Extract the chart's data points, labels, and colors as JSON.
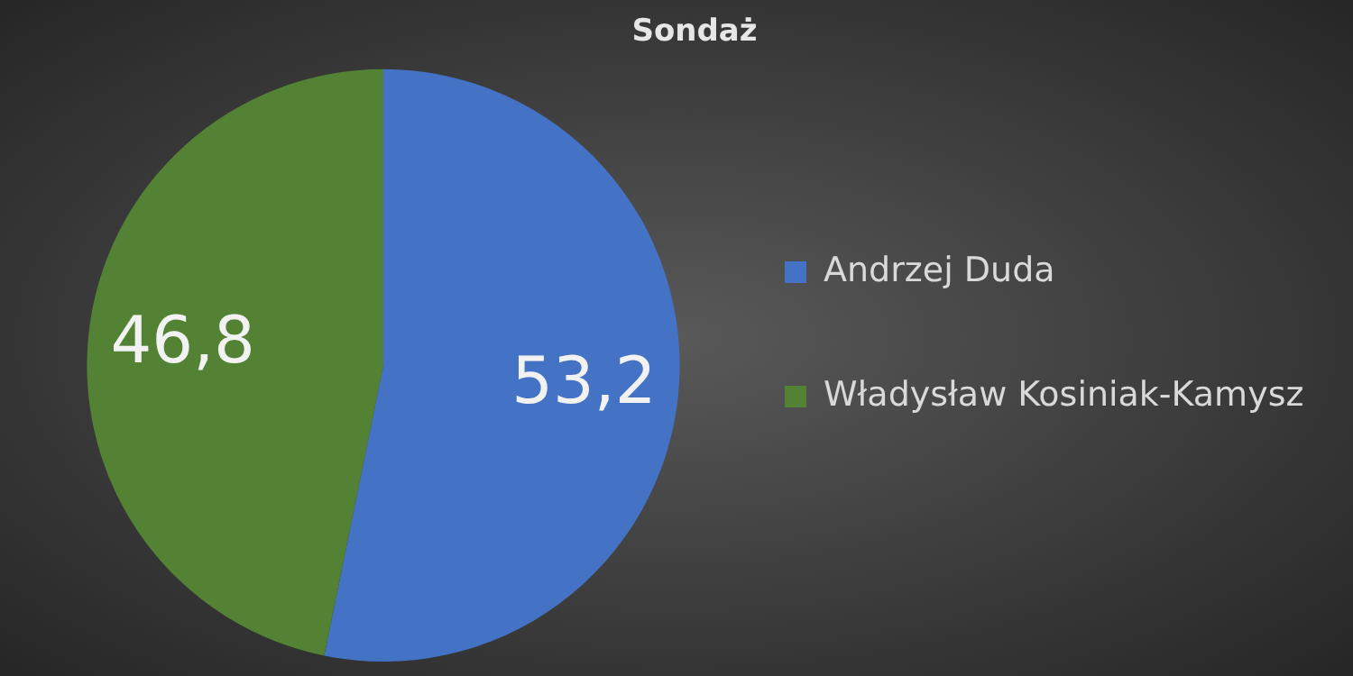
{
  "chart_data": {
    "type": "pie",
    "title": "Sondaż",
    "categories": [
      "Andrzej Duda",
      "Władysław Kosiniak-Kamysz"
    ],
    "values": [
      53.2,
      46.8
    ],
    "colors": [
      "#4472c4",
      "#548235"
    ],
    "value_labels": [
      "53,2",
      "46,8"
    ],
    "legend": "right"
  }
}
